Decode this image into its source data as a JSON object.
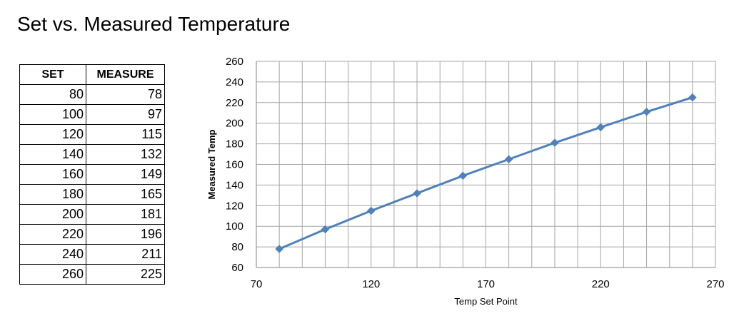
{
  "page": {
    "title": "Set vs. Measured Temperature"
  },
  "table": {
    "headers": [
      "SET",
      "MEASURE"
    ],
    "rows": [
      [
        "80",
        "78"
      ],
      [
        "100",
        "97"
      ],
      [
        "120",
        "115"
      ],
      [
        "140",
        "132"
      ],
      [
        "160",
        "149"
      ],
      [
        "180",
        "165"
      ],
      [
        "200",
        "181"
      ],
      [
        "220",
        "196"
      ],
      [
        "240",
        "211"
      ],
      [
        "260",
        "225"
      ]
    ]
  },
  "chart_data": {
    "type": "scatter",
    "title": "",
    "xlabel": "Temp Set Point",
    "ylabel": "Measured Temp",
    "xlim": [
      70,
      270
    ],
    "ylim": [
      60,
      260
    ],
    "x_ticks": [
      70,
      120,
      170,
      220,
      270
    ],
    "y_ticks": [
      60,
      80,
      100,
      120,
      140,
      160,
      180,
      200,
      220,
      240,
      260
    ],
    "x_minor_step": 10,
    "grid": true,
    "legend": "none",
    "marker": "diamond",
    "line": "straight",
    "color": "#4F81BD",
    "series": [
      {
        "x": [
          80,
          100,
          120,
          140,
          160,
          180,
          200,
          220,
          240,
          260
        ],
        "y": [
          78,
          97,
          115,
          132,
          149,
          165,
          181,
          196,
          211,
          225
        ]
      }
    ]
  }
}
